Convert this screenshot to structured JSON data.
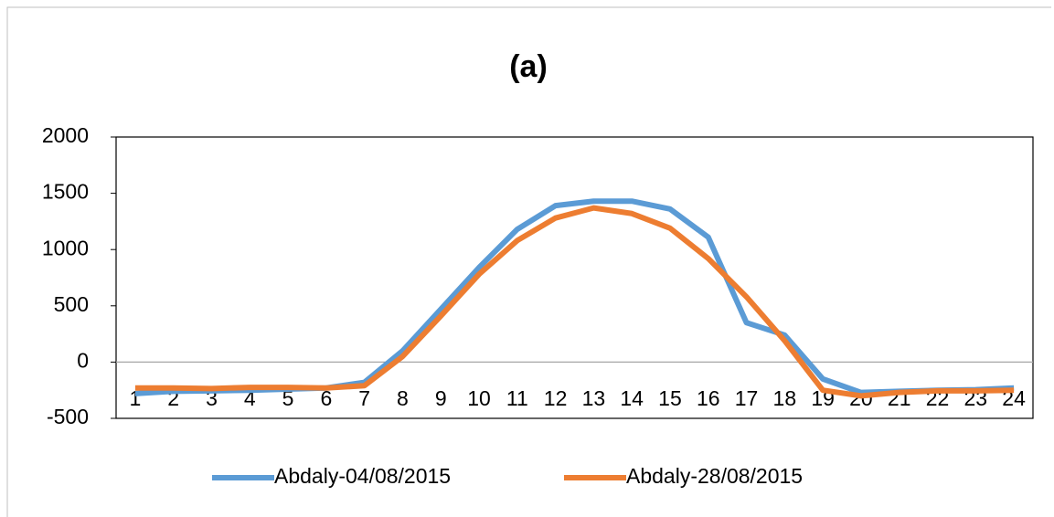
{
  "chart_data": {
    "type": "line",
    "title": "(a)",
    "categories": [
      "1",
      "2",
      "3",
      "4",
      "5",
      "6",
      "7",
      "8",
      "9",
      "10",
      "11",
      "12",
      "13",
      "14",
      "15",
      "16",
      "17",
      "18",
      "19",
      "20",
      "21",
      "22",
      "23",
      "24"
    ],
    "series": [
      {
        "name": "Abdaly-04/08/2015",
        "color": "#5b9bd5",
        "values": [
          -280,
          -260,
          -255,
          -250,
          -240,
          -230,
          -180,
          100,
          470,
          840,
          1180,
          1390,
          1430,
          1430,
          1360,
          1110,
          350,
          240,
          -150,
          -270,
          -260,
          -250,
          -245,
          -230
        ]
      },
      {
        "name": "Abdaly-28/08/2015",
        "color": "#ed7d31",
        "values": [
          -230,
          -230,
          -235,
          -225,
          -225,
          -230,
          -210,
          50,
          410,
          780,
          1080,
          1280,
          1370,
          1320,
          1190,
          920,
          580,
          190,
          -250,
          -300,
          -270,
          -255,
          -255,
          -250
        ]
      }
    ],
    "ylim": [
      -500,
      2000
    ],
    "yticks": [
      -500,
      0,
      500,
      1000,
      1500,
      2000
    ],
    "legend": "bottom"
  }
}
